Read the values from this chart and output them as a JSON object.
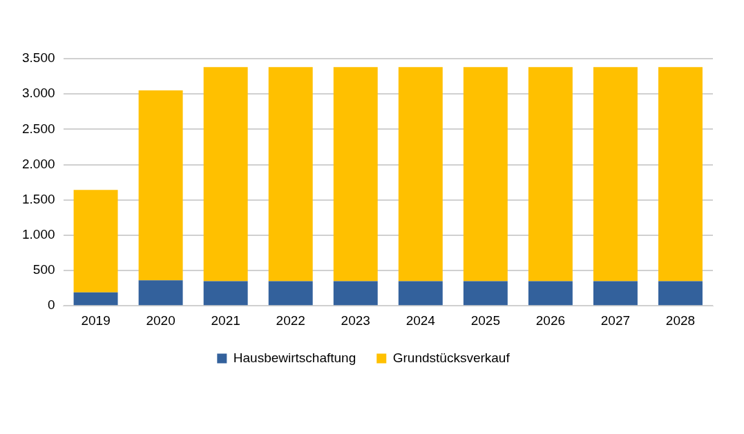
{
  "chart_data": {
    "type": "bar",
    "stacked": true,
    "categories": [
      "2019",
      "2020",
      "2021",
      "2022",
      "2023",
      "2024",
      "2025",
      "2026",
      "2027",
      "2028"
    ],
    "series": [
      {
        "name": "Hausbewirtschaftung",
        "color": "#33619c",
        "values": [
          190,
          360,
          350,
          350,
          350,
          350,
          350,
          350,
          350,
          350
        ]
      },
      {
        "name": "Grundstücksverkauf",
        "color": "#ffc000",
        "values": [
          1450,
          2690,
          3030,
          3030,
          3030,
          3030,
          3030,
          3030,
          3030,
          3030
        ]
      }
    ],
    "ylim": [
      0,
      3500
    ],
    "yticks": [
      {
        "value": 0,
        "label": "0"
      },
      {
        "value": 500,
        "label": "500"
      },
      {
        "value": 1000,
        "label": "1.000"
      },
      {
        "value": 1500,
        "label": "1.500"
      },
      {
        "value": 2000,
        "label": "2.000"
      },
      {
        "value": 2500,
        "label": "2.500"
      },
      {
        "value": 3000,
        "label": "3.000"
      },
      {
        "value": 3500,
        "label": "3.500"
      }
    ],
    "grid": "y",
    "legend": "bottom"
  }
}
